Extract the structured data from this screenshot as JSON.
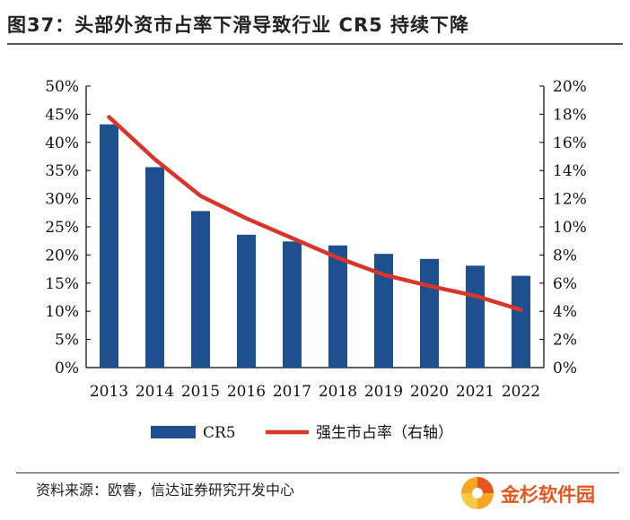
{
  "title": "图37：头部外资市占率下滑导致行业 CR5 持续下降",
  "source": "资料来源：欧睿，信达证券研究开发中心",
  "logo_text": "金杉软件园",
  "colors": {
    "bar": "#1e4f8f",
    "line": "#d9352a"
  },
  "chart_data": {
    "type": "bar+line",
    "categories": [
      "2013",
      "2014",
      "2015",
      "2016",
      "2017",
      "2018",
      "2019",
      "2020",
      "2021",
      "2022"
    ],
    "series": [
      {
        "name": "CR5",
        "type": "bar",
        "axis": "left",
        "values": [
          43.2,
          35.6,
          27.8,
          23.6,
          22.4,
          21.7,
          20.2,
          19.3,
          18.1,
          16.3
        ]
      },
      {
        "name": "强生市占率（右轴）",
        "type": "line",
        "axis": "right",
        "values": [
          17.8,
          14.8,
          12.2,
          10.6,
          9.2,
          7.8,
          6.6,
          5.8,
          5.1,
          4.1
        ]
      }
    ],
    "y_left": {
      "min": 0,
      "max": 50,
      "ticks": [
        "0%",
        "5%",
        "10%",
        "15%",
        "20%",
        "25%",
        "30%",
        "35%",
        "40%",
        "45%",
        "50%"
      ]
    },
    "y_right": {
      "min": 0,
      "max": 20,
      "ticks": [
        "0%",
        "2%",
        "4%",
        "6%",
        "8%",
        "10%",
        "12%",
        "14%",
        "16%",
        "18%",
        "20%"
      ]
    },
    "grid": false,
    "legend": "bottom"
  }
}
